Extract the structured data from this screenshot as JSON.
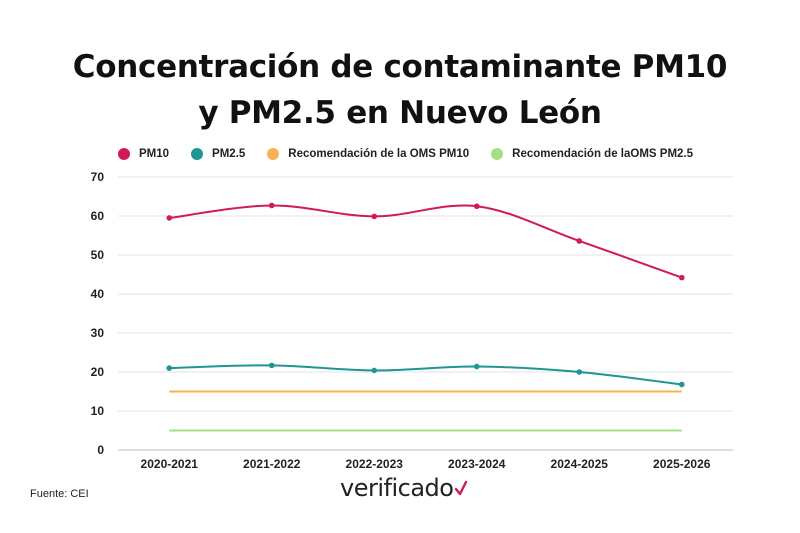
{
  "title": {
    "line1": "Concentración de contaminante PM10",
    "line2": "y PM2.5 en Nuevo León"
  },
  "legend": [
    {
      "label": "PM10",
      "color": "#d2195a"
    },
    {
      "label": "PM2.5",
      "color": "#1f9594"
    },
    {
      "label": "Recomendación de la OMS PM10",
      "color": "#f7b152"
    },
    {
      "label": "Recomendación de laOMS PM2.5",
      "color": "#a3e085"
    }
  ],
  "chart_data": {
    "type": "line",
    "categories": [
      "2020-2021",
      "2021-2022",
      "2022-2023",
      "2023-2024",
      "2024-2025",
      "2025-2026"
    ],
    "series": [
      {
        "name": "PM10",
        "color": "#d2195a",
        "values": [
          59.5,
          62.7,
          59.9,
          62.5,
          53.6,
          44.2
        ],
        "markers": true
      },
      {
        "name": "PM2.5",
        "color": "#1f9594",
        "values": [
          21.0,
          21.7,
          20.4,
          21.4,
          20.0,
          16.8
        ],
        "markers": true
      },
      {
        "name": "Recomendación de la OMS PM10",
        "color": "#f7b152",
        "values": [
          15,
          15,
          15,
          15,
          15,
          15
        ],
        "markers": false
      },
      {
        "name": "Recomendación de laOMS PM2.5",
        "color": "#a3e085",
        "values": [
          5,
          5,
          5,
          5,
          5,
          5
        ],
        "markers": false
      }
    ],
    "yticks": [
      0,
      10,
      20,
      30,
      40,
      50,
      60,
      70
    ],
    "ylim": [
      0,
      70
    ],
    "grid": true,
    "legend_position": "top"
  },
  "footer": {
    "source": "Fuente: CEI",
    "logo_text": "verificado"
  }
}
